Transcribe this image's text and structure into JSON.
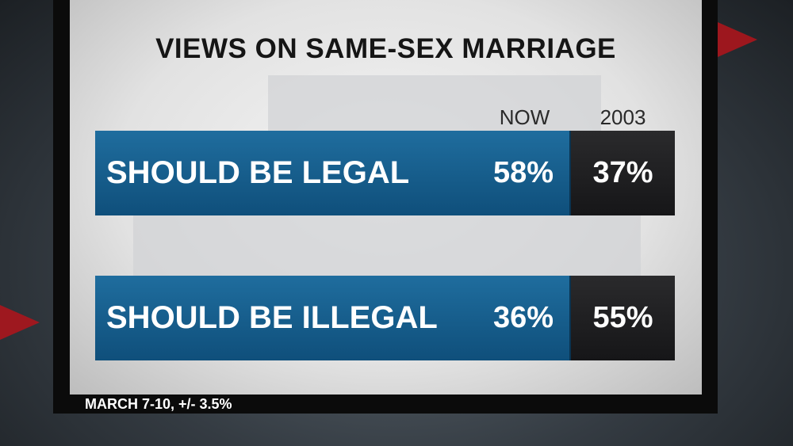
{
  "title": "VIEWS ON SAME-SEX MARRIAGE",
  "columns": [
    "NOW",
    "2003"
  ],
  "rows": [
    {
      "label": "SHOULD BE LEGAL",
      "values": [
        "58%",
        "37%"
      ]
    },
    {
      "label": "SHOULD BE ILLEGAL",
      "values": [
        "36%",
        "55%"
      ]
    }
  ],
  "footnote": "MARCH 7-10, +/- 3.5%"
}
